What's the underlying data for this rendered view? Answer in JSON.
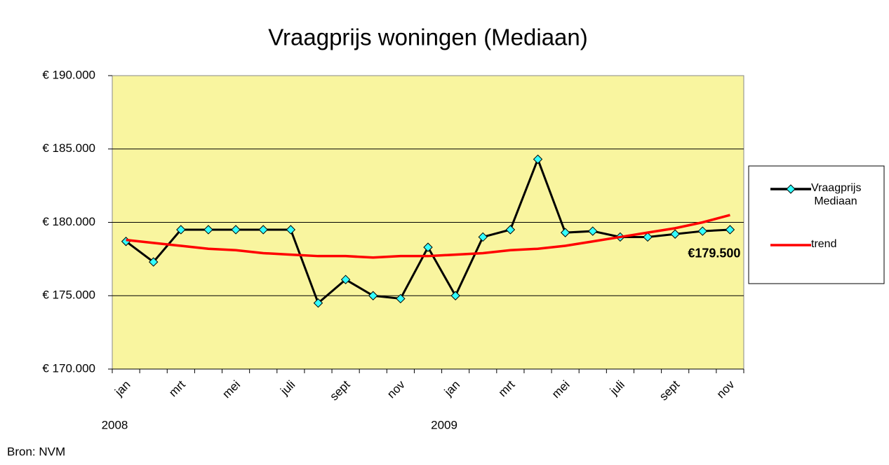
{
  "chart_data": {
    "type": "line",
    "title": "Vraagprijs woningen (Mediaan)",
    "categories": [
      "jan",
      null,
      "mrt",
      null,
      "mei",
      null,
      "juli",
      null,
      "sept",
      null,
      "nov",
      null,
      "jan",
      null,
      "mrt",
      null,
      "mei",
      null,
      "juli",
      null,
      "sept",
      null,
      "nov"
    ],
    "year_labels": [
      "2008",
      "2009"
    ],
    "series": [
      {
        "name": "Vraagprijs Mediaan",
        "color": "#000000",
        "marker_color": "#33ffff",
        "values": [
          178700,
          177300,
          179500,
          179500,
          179500,
          179500,
          179500,
          174500,
          176100,
          175000,
          174800,
          178300,
          175000,
          179000,
          179500,
          184300,
          179300,
          179400,
          179000,
          179000,
          179200,
          179400,
          179500
        ],
        "value_labels": [
          null,
          null,
          null,
          null,
          null,
          null,
          null,
          null,
          null,
          null,
          null,
          null,
          null,
          null,
          null,
          null,
          null,
          null,
          null,
          null,
          null,
          null,
          "€179.500"
        ]
      },
      {
        "name": "trend",
        "color": "#ff0000",
        "values": [
          178800,
          178600,
          178400,
          178200,
          178100,
          177900,
          177800,
          177700,
          177700,
          177600,
          177700,
          177700,
          177800,
          177900,
          178100,
          178200,
          178400,
          178700,
          179000,
          179300,
          179600,
          180000,
          180500
        ]
      }
    ],
    "ylim": [
      170000,
      190000
    ],
    "yticks": [
      {
        "value": 170000,
        "label": "€ 170.000"
      },
      {
        "value": 175000,
        "label": "€ 175.000"
      },
      {
        "value": 180000,
        "label": "€ 180.000"
      },
      {
        "value": 185000,
        "label": "€ 185.000"
      },
      {
        "value": 190000,
        "label": "€ 190.000"
      }
    ],
    "grid": true,
    "plot_color": "#f9f59f",
    "legend": "right",
    "source": "Bron: NVM"
  }
}
